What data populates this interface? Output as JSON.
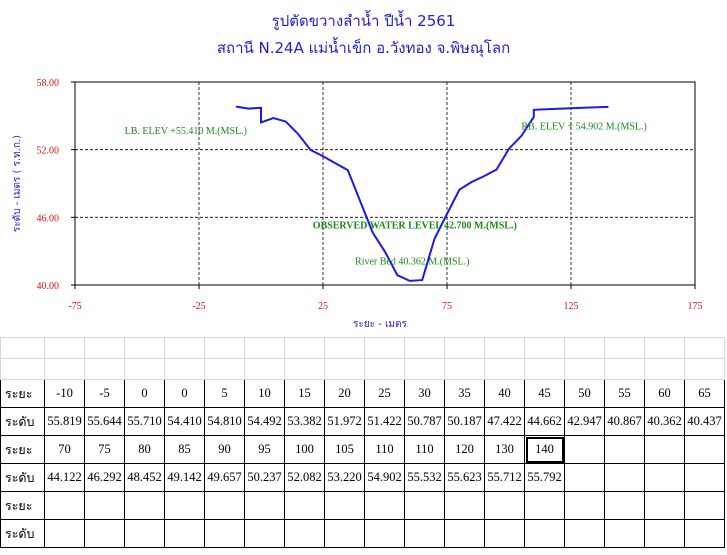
{
  "header": {
    "title_line1": "รูปตัดขวางลำน้ำ   ปีน้ำ 2561",
    "title_line2": "สถานี N.24A แม่น้ำเข็ก    อ.วังทอง   จ.พิษณุโลก"
  },
  "colors": {
    "line": "#1a1ae6",
    "annotation": "#1a8a1a",
    "tick": "#e01010",
    "axis_label": "#1f1fd0"
  },
  "chart_data": {
    "type": "line",
    "xlabel": "ระยะ - เมตร",
    "ylabel": "ระดับ - เมตร ( ร.ท.ก.)",
    "xlim": [
      -75,
      175
    ],
    "ylim": [
      40,
      58
    ],
    "x_ticks": [
      "-75",
      "-25",
      "25",
      "75",
      "125",
      "175"
    ],
    "y_ticks": [
      "40.00",
      "46.00",
      "52.00",
      "58.00"
    ],
    "grid": true,
    "annotations": [
      "LB. ELEV  +55.410 M.(MSL.)",
      "RB. ELEV  + 54.902 M.(MSL.)",
      "OBSERVED WATER LEVEL 42.700 M.(MSL.)",
      "River  Bed  40.362 M.(MSL.)"
    ],
    "series": [
      {
        "x": [
          -10,
          -5,
          0,
          0,
          5,
          10,
          15,
          20,
          25,
          30,
          35,
          40,
          45,
          50,
          55,
          60,
          65,
          70,
          75,
          80,
          85,
          90,
          95,
          100,
          105,
          110,
          110,
          120,
          130,
          140
        ],
        "values": [
          55.819,
          55.644,
          55.71,
          54.41,
          54.81,
          54.492,
          53.382,
          51.972,
          51.422,
          50.787,
          50.187,
          47.422,
          44.662,
          42.947,
          40.867,
          40.362,
          40.437,
          44.122,
          46.292,
          48.452,
          49.142,
          49.657,
          50.237,
          52.082,
          53.22,
          54.902,
          55.532,
          55.623,
          55.712,
          55.792
        ]
      }
    ]
  },
  "table": {
    "distance_label": "ระยะ",
    "level_label": "ระดับ",
    "row1_distance": [
      "-10",
      "-5",
      "0",
      "0",
      "5",
      "10",
      "15",
      "20",
      "25",
      "30",
      "35",
      "40",
      "45",
      "50",
      "55",
      "60",
      "65"
    ],
    "row1_level": [
      "55.819",
      "55.644",
      "55.710",
      "54.410",
      "54.810",
      "54.492",
      "53.382",
      "51.972",
      "51.422",
      "50.787",
      "50.187",
      "47.422",
      "44.662",
      "42.947",
      "40.867",
      "40.362",
      "40.437"
    ],
    "row2_distance": [
      "70",
      "75",
      "80",
      "85",
      "90",
      "95",
      "100",
      "105",
      "110",
      "110",
      "120",
      "130",
      "140"
    ],
    "row2_level": [
      "44.122",
      "46.292",
      "48.452",
      "49.142",
      "49.657",
      "50.237",
      "52.082",
      "53.220",
      "54.902",
      "55.532",
      "55.623",
      "55.712",
      "55.792"
    ]
  }
}
